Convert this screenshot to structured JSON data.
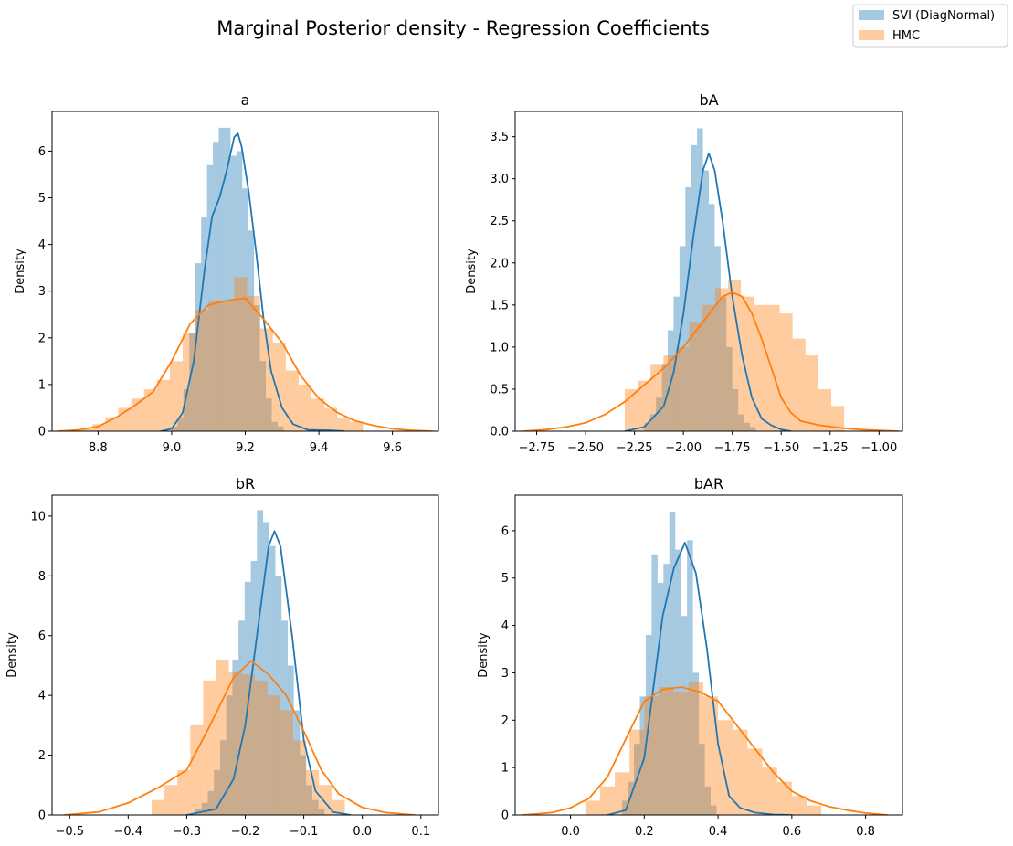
{
  "figure": {
    "title": "Marginal Posterior density - Regression Coefficients",
    "legend_position": "top-right"
  },
  "colors": {
    "svi": "#1f77b4",
    "hmc": "#ff7f0e"
  },
  "legend": [
    {
      "name": "SVI (DiagNormal)",
      "color": "#1f77b4"
    },
    {
      "name": "HMC",
      "color": "#ff7f0e"
    }
  ],
  "chart_data": [
    {
      "type": "histogram+kde",
      "title": "a",
      "xlabel": "",
      "ylabel": "Density",
      "xlim": [
        8.675,
        9.725
      ],
      "ylim": [
        0,
        6.85
      ],
      "xticks": [
        8.8,
        9.0,
        9.2,
        9.4,
        9.6
      ],
      "xtick_labels": [
        "8.8",
        "9.0",
        "9.2",
        "9.4",
        "9.6"
      ],
      "yticks": [
        0,
        1,
        2,
        3,
        4,
        5,
        6
      ],
      "ytick_labels": [
        "0",
        "1",
        "2",
        "3",
        "4",
        "5",
        "6"
      ],
      "series": [
        {
          "name": "SVI (DiagNormal)",
          "color": "#1f77b4",
          "hist": {
            "start": 9.0,
            "width": 0.016,
            "values": [
              0.1,
              0.3,
              0.9,
              2.1,
              3.6,
              4.6,
              5.7,
              6.2,
              6.5,
              6.5,
              5.9,
              6.0,
              5.2,
              4.3,
              2.7,
              1.5,
              0.7,
              0.2,
              0.1
            ]
          },
          "kde": {
            "x": [
              8.97,
              9.0,
              9.03,
              9.06,
              9.09,
              9.11,
              9.13,
              9.15,
              9.17,
              9.18,
              9.19,
              9.21,
              9.23,
              9.25,
              9.27,
              9.3,
              9.33,
              9.37,
              9.43,
              9.47
            ],
            "y": [
              0,
              0.05,
              0.4,
              1.5,
              3.5,
              4.6,
              5.0,
              5.6,
              6.3,
              6.38,
              6.1,
              5.1,
              3.8,
              2.4,
              1.3,
              0.5,
              0.15,
              0.03,
              0.02,
              0
            ]
          }
        },
        {
          "name": "HMC",
          "color": "#ff7f0e",
          "hist": {
            "start": 8.75,
            "width": 0.035,
            "values": [
              0.05,
              0.15,
              0.3,
              0.5,
              0.7,
              0.9,
              1.1,
              1.5,
              2.1,
              2.6,
              2.8,
              2.8,
              3.3,
              2.9,
              2.2,
              1.9,
              1.3,
              1.0,
              0.7,
              0.5,
              0.3,
              0.2
            ]
          },
          "kde": {
            "x": [
              8.69,
              8.75,
              8.8,
              8.85,
              8.9,
              8.95,
              9.0,
              9.05,
              9.1,
              9.15,
              9.2,
              9.25,
              9.3,
              9.35,
              9.4,
              9.45,
              9.5,
              9.55,
              9.6,
              9.65,
              9.71
            ],
            "y": [
              0,
              0.03,
              0.1,
              0.3,
              0.55,
              0.85,
              1.5,
              2.3,
              2.7,
              2.8,
              2.85,
              2.4,
              1.9,
              1.2,
              0.7,
              0.4,
              0.22,
              0.12,
              0.05,
              0.02,
              0
            ]
          }
        }
      ]
    },
    {
      "type": "histogram+kde",
      "title": "bA",
      "xlabel": "",
      "ylabel": "Density",
      "xlim": [
        -2.86,
        -0.88
      ],
      "ylim": [
        0,
        3.8
      ],
      "xticks": [
        -2.75,
        -2.5,
        -2.25,
        -2.0,
        -1.75,
        -1.5,
        -1.25,
        -1.0
      ],
      "xtick_labels": [
        "−2.75",
        "−2.50",
        "−2.25",
        "−2.00",
        "−1.75",
        "−1.50",
        "−1.25",
        "−1.00"
      ],
      "yticks": [
        0,
        0.5,
        1.0,
        1.5,
        2.0,
        2.5,
        3.0,
        3.5
      ],
      "ytick_labels": [
        "0.0",
        "0.5",
        "1.0",
        "1.5",
        "2.0",
        "2.5",
        "3.0",
        "3.5"
      ],
      "series": [
        {
          "name": "SVI (DiagNormal)",
          "color": "#1f77b4",
          "hist": {
            "start": -2.2,
            "width": 0.03,
            "values": [
              0.1,
              0.2,
              0.4,
              0.8,
              1.2,
              1.6,
              2.2,
              2.9,
              3.4,
              3.6,
              3.1,
              2.7,
              2.2,
              1.6,
              1.0,
              0.5,
              0.2,
              0.1,
              0.05
            ]
          },
          "kde": {
            "x": [
              -2.3,
              -2.2,
              -2.1,
              -2.05,
              -2.0,
              -1.95,
              -1.9,
              -1.87,
              -1.84,
              -1.8,
              -1.75,
              -1.7,
              -1.65,
              -1.6,
              -1.55,
              -1.5,
              -1.45
            ],
            "y": [
              0,
              0.05,
              0.3,
              0.7,
              1.4,
              2.3,
              3.1,
              3.3,
              3.1,
              2.5,
              1.6,
              0.9,
              0.4,
              0.15,
              0.07,
              0.02,
              0
            ]
          }
        },
        {
          "name": "HMC",
          "color": "#ff7f0e",
          "hist": {
            "start": -2.3,
            "width": 0.066,
            "values": [
              0.5,
              0.6,
              0.8,
              0.9,
              1.0,
              1.3,
              1.5,
              1.7,
              1.8,
              1.6,
              1.5,
              1.5,
              1.4,
              1.1,
              0.9,
              0.5,
              0.3
            ]
          },
          "kde": {
            "x": [
              -2.82,
              -2.7,
              -2.6,
              -2.5,
              -2.4,
              -2.3,
              -2.2,
              -2.1,
              -2.0,
              -1.9,
              -1.8,
              -1.75,
              -1.7,
              -1.65,
              -1.6,
              -1.55,
              -1.5,
              -1.45,
              -1.4,
              -1.3,
              -1.2,
              -1.1,
              -0.9
            ],
            "y": [
              0,
              0.02,
              0.05,
              0.1,
              0.2,
              0.35,
              0.55,
              0.75,
              1.0,
              1.3,
              1.6,
              1.65,
              1.6,
              1.4,
              1.1,
              0.75,
              0.4,
              0.22,
              0.12,
              0.07,
              0.04,
              0.02,
              0
            ]
          }
        }
      ]
    },
    {
      "type": "histogram+kde",
      "title": "bR",
      "xlabel": "",
      "ylabel": "Density",
      "xlim": [
        -0.53,
        0.13
      ],
      "ylim": [
        0,
        10.7
      ],
      "xticks": [
        -0.5,
        -0.4,
        -0.3,
        -0.2,
        -0.1,
        0.0,
        0.1
      ],
      "xtick_labels": [
        "−0.5",
        "−0.4",
        "−0.3",
        "−0.2",
        "−0.1",
        "0.0",
        "0.1"
      ],
      "yticks": [
        0,
        2,
        4,
        6,
        8,
        10
      ],
      "ytick_labels": [
        "0",
        "2",
        "4",
        "6",
        "8",
        "10"
      ],
      "series": [
        {
          "name": "SVI (DiagNormal)",
          "color": "#1f77b4",
          "hist": {
            "start": -0.285,
            "width": 0.0105,
            "values": [
              0.2,
              0.4,
              0.8,
              1.5,
              2.5,
              4.0,
              5.2,
              6.5,
              7.8,
              8.5,
              10.2,
              9.8,
              9.0,
              8.0,
              6.5,
              5.0,
              3.5,
              2.0,
              1.0,
              0.5,
              0.2
            ]
          },
          "kde": {
            "x": [
              -0.3,
              -0.25,
              -0.22,
              -0.2,
              -0.18,
              -0.16,
              -0.15,
              -0.14,
              -0.12,
              -0.1,
              -0.08,
              -0.05,
              -0.02
            ],
            "y": [
              0,
              0.2,
              1.2,
              3.0,
              6.0,
              9.0,
              9.5,
              9.0,
              6.0,
              2.5,
              0.8,
              0.1,
              0
            ]
          }
        },
        {
          "name": "HMC",
          "color": "#ff7f0e",
          "hist": {
            "start": -0.36,
            "width": 0.022,
            "values": [
              0.5,
              1.0,
              1.5,
              3.0,
              4.5,
              5.2,
              4.8,
              4.7,
              4.5,
              4.0,
              3.5,
              2.5,
              1.5,
              1.0,
              0.5
            ]
          },
          "kde": {
            "x": [
              -0.51,
              -0.45,
              -0.4,
              -0.35,
              -0.3,
              -0.26,
              -0.22,
              -0.19,
              -0.16,
              -0.13,
              -0.1,
              -0.07,
              -0.04,
              0,
              0.04,
              0.09
            ],
            "y": [
              0,
              0.1,
              0.4,
              0.9,
              1.5,
              3.0,
              4.6,
              5.15,
              4.7,
              4.0,
              2.8,
              1.5,
              0.7,
              0.25,
              0.08,
              0
            ]
          }
        }
      ]
    },
    {
      "type": "histogram+kde",
      "title": "bAR",
      "xlabel": "",
      "ylabel": "Density",
      "xlim": [
        -0.15,
        0.9
      ],
      "ylim": [
        0,
        6.75
      ],
      "xticks": [
        0.0,
        0.2,
        0.4,
        0.6,
        0.8
      ],
      "xtick_labels": [
        "0.0",
        "0.2",
        "0.4",
        "0.6",
        "0.8"
      ],
      "yticks": [
        0,
        1,
        2,
        3,
        4,
        5,
        6
      ],
      "ytick_labels": [
        "0",
        "1",
        "2",
        "3",
        "4",
        "5",
        "6"
      ],
      "series": [
        {
          "name": "SVI (DiagNormal)",
          "color": "#1f77b4",
          "hist": {
            "start": 0.14,
            "width": 0.016,
            "values": [
              0.3,
              0.7,
              1.5,
              2.5,
              3.8,
              5.5,
              4.9,
              5.3,
              6.4,
              5.6,
              4.2,
              5.8,
              3.0,
              1.5,
              0.6,
              0.2
            ]
          },
          "kde": {
            "x": [
              0.1,
              0.15,
              0.2,
              0.25,
              0.28,
              0.31,
              0.34,
              0.37,
              0.4,
              0.43,
              0.46,
              0.5,
              0.55,
              0.6
            ],
            "y": [
              0,
              0.1,
              1.2,
              4.2,
              5.2,
              5.75,
              5.1,
              3.5,
              1.5,
              0.4,
              0.15,
              0.05,
              0.01,
              0
            ]
          }
        },
        {
          "name": "HMC",
          "color": "#ff7f0e",
          "hist": {
            "start": 0.04,
            "width": 0.04,
            "values": [
              0.3,
              0.6,
              0.9,
              1.8,
              2.5,
              2.7,
              2.6,
              2.8,
              2.5,
              2.0,
              1.8,
              1.4,
              1.0,
              0.7,
              0.4,
              0.2
            ]
          },
          "kde": {
            "x": [
              -0.13,
              -0.05,
              0.0,
              0.05,
              0.1,
              0.15,
              0.2,
              0.25,
              0.3,
              0.35,
              0.4,
              0.45,
              0.5,
              0.55,
              0.6,
              0.65,
              0.7,
              0.75,
              0.8,
              0.86
            ],
            "y": [
              0,
              0.05,
              0.15,
              0.35,
              0.8,
              1.6,
              2.4,
              2.65,
              2.7,
              2.6,
              2.4,
              1.9,
              1.4,
              0.9,
              0.5,
              0.3,
              0.18,
              0.1,
              0.04,
              0
            ]
          }
        }
      ]
    }
  ]
}
